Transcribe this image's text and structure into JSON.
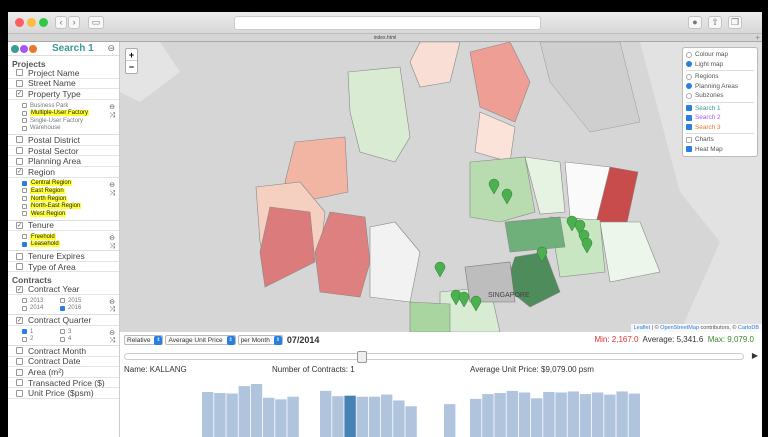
{
  "browser": {
    "tab_title": "index.html"
  },
  "sidebar": {
    "title": "Search 1",
    "search_colors": [
      "#3a9a95",
      "#a855f7",
      "#e8762c"
    ],
    "sections": [
      {
        "label": "Projects",
        "items": [
          {
            "label": "Project Name",
            "checked": false
          },
          {
            "label": "Street Name",
            "checked": false
          },
          {
            "label": "Property Type",
            "checked": true,
            "options": [
              {
                "label": "Business Park",
                "checked": false,
                "highlight": false
              },
              {
                "label": "Multiple-User Factory",
                "checked": false,
                "highlight": true
              },
              {
                "label": "Single-User Factory",
                "checked": false,
                "highlight": false
              },
              {
                "label": "Warehouse",
                "checked": false,
                "highlight": false
              }
            ]
          },
          {
            "label": "Postal District",
            "checked": false
          },
          {
            "label": "Postal Sector",
            "checked": false
          },
          {
            "label": "Planning Area",
            "checked": false
          },
          {
            "label": "Region",
            "checked": true,
            "options": [
              {
                "label": "Central Region",
                "checked": true,
                "highlight": true
              },
              {
                "label": "East Region",
                "checked": false,
                "highlight": true
              },
              {
                "label": "North Region",
                "checked": false,
                "highlight": true
              },
              {
                "label": "North-East Region",
                "checked": false,
                "highlight": true
              },
              {
                "label": "West Region",
                "checked": false,
                "highlight": true
              }
            ]
          },
          {
            "label": "Tenure",
            "checked": true,
            "options": [
              {
                "label": "Freehold",
                "checked": false,
                "highlight": true
              },
              {
                "label": "Leasehold",
                "checked": true,
                "highlight": true
              }
            ]
          },
          {
            "label": "Tenure Expires",
            "checked": false
          },
          {
            "label": "Type of Area",
            "checked": false
          }
        ]
      },
      {
        "label": "Contracts",
        "items": [
          {
            "label": "Contract Year",
            "checked": true,
            "grid": [
              {
                "label": "2013",
                "checked": false
              },
              {
                "label": "2015",
                "checked": false
              },
              {
                "label": "2014",
                "checked": false
              },
              {
                "label": "2016",
                "checked": true
              }
            ]
          },
          {
            "label": "Contract Quarter",
            "checked": true,
            "grid": [
              {
                "label": "1",
                "checked": true
              },
              {
                "label": "3",
                "checked": false
              },
              {
                "label": "2",
                "checked": false
              },
              {
                "label": "4",
                "checked": false
              }
            ]
          },
          {
            "label": "Contract Month",
            "checked": false
          },
          {
            "label": "Contract Date",
            "checked": false
          },
          {
            "label": "Area (m²)",
            "checked": false
          },
          {
            "label": "Transacted Price ($)",
            "checked": false
          },
          {
            "label": "Unit Price ($psm)",
            "checked": false
          }
        ]
      }
    ]
  },
  "map": {
    "zoom_in": "+",
    "zoom_out": "−",
    "layers": [
      [
        {
          "label": "Colour map",
          "type": "radio",
          "on": false
        },
        {
          "label": "Light map",
          "type": "radio",
          "on": true
        }
      ],
      [
        {
          "label": "Regions",
          "type": "radio",
          "on": false
        },
        {
          "label": "Planning Areas",
          "type": "radio",
          "on": true
        },
        {
          "label": "Subzones",
          "type": "radio",
          "on": false
        }
      ],
      [
        {
          "label": "Search 1",
          "type": "check",
          "on": true,
          "color": "#3a9a95"
        },
        {
          "label": "Search 2",
          "type": "check",
          "on": true,
          "color": "#a855f7"
        },
        {
          "label": "Search 3",
          "type": "check",
          "on": true,
          "color": "#e8762c"
        }
      ],
      [
        {
          "label": "Charts",
          "type": "check",
          "on": false
        },
        {
          "label": "Heat Map",
          "type": "check",
          "on": true
        }
      ]
    ],
    "attribution": {
      "leaflet": "Leaflet",
      "sep": " | © ",
      "osm": "OpenStreetMap",
      "contrib": " contributors, © ",
      "carto": "CartoDB"
    },
    "label_downtown": "SINGAPORE"
  },
  "controls": {
    "mode": "Relative",
    "measure": "Average Unit Price",
    "period": "per Month",
    "date": "07/2014",
    "min": "Min: 2,167.0",
    "avg": "Average: 5,341.6",
    "max": "Max: 9,079.0",
    "min_color": "#e03030",
    "max_color": "#3a8a2a",
    "slider_fraction": 0.38,
    "name": "Name: KALLANG",
    "contracts": "Number of Contracts: 1",
    "avg_price": "Average Unit Price: $9,079.00 psm"
  },
  "chart_data": {
    "type": "bar",
    "groups": [
      {
        "values": [
          0.85,
          0.83,
          0.82,
          0.96,
          1.0,
          0.74,
          0.71,
          0.76
        ]
      },
      {
        "values": [
          0.87,
          0.77,
          0.78,
          0.76,
          0.76,
          0.8,
          0.69,
          0.58
        ],
        "selected_index": 2
      },
      {
        "values": [
          0.62
        ]
      },
      {
        "values": [
          0.72,
          0.81,
          0.83,
          0.87,
          0.84,
          0.73,
          0.85,
          0.84,
          0.86,
          0.81,
          0.84,
          0.8,
          0.86,
          0.82
        ]
      }
    ],
    "bar_color": "#b0c4de",
    "selected_color": "#4682b4"
  }
}
